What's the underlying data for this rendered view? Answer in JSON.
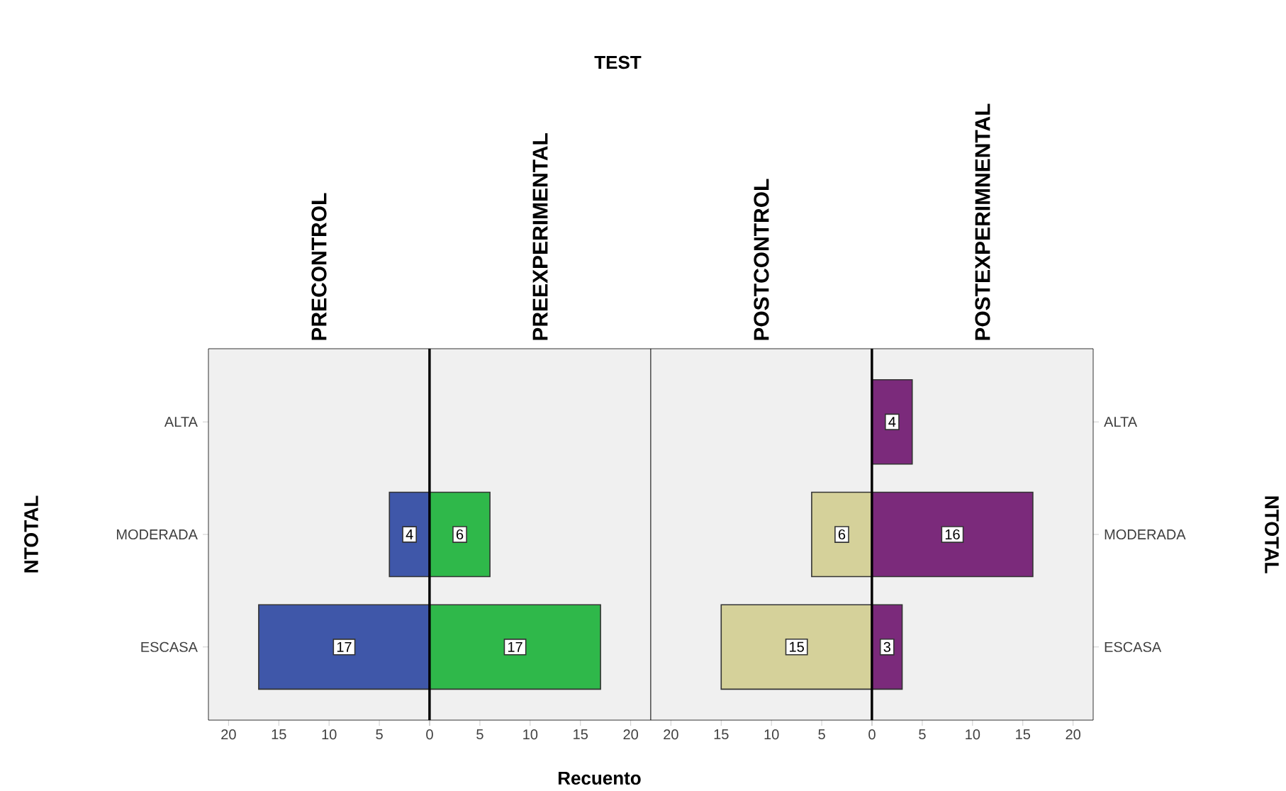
{
  "chart_data": [
    {
      "type": "bar",
      "orientation": "horizontal",
      "subtitle": "PRECONTROL",
      "ylabel": "NTOTAL",
      "categories": [
        "ALTA",
        "MODERADA",
        "ESCASA"
      ],
      "series": [
        {
          "color": "#3f57a9",
          "values": [
            null,
            4,
            17
          ]
        }
      ],
      "xlim": [
        22,
        0
      ],
      "xticks": [
        20,
        15,
        10,
        5,
        0
      ],
      "data_labels": true
    },
    {
      "type": "bar",
      "orientation": "horizontal",
      "title": "TEST",
      "subtitle": "PREEXPERIMENTAL",
      "xlabel": "Recuento",
      "categories": [
        null,
        null,
        null
      ],
      "tick_labels": "x",
      "series": [
        {
          "color": "#2fb84a",
          "values": [
            null,
            6,
            17
          ]
        }
      ],
      "xlim": [
        0,
        22
      ],
      "xticks": [
        {
          "value": 0,
          "label": null
        },
        5,
        10,
        15,
        20
      ],
      "data_labels": true
    },
    {
      "type": "bar",
      "orientation": "horizontal",
      "subtitle": "POSTCONTROL",
      "categories": [
        null,
        null,
        null
      ],
      "tick_labels": "x",
      "series": [
        {
          "color": "#d5d19a",
          "values": [
            null,
            6,
            15
          ]
        }
      ],
      "xlim": [
        22,
        0
      ],
      "xticks": [
        20,
        15,
        10,
        5,
        0
      ],
      "data_labels": true
    },
    {
      "type": "bar",
      "orientation": "horizontal",
      "subtitle": "POSTEXPERIMNENTAL",
      "y2label": "NTOTAL",
      "categories": [
        "ALTA",
        "MODERADA",
        "ESCASA"
      ],
      "series": [
        {
          "color": "#7b2a7b",
          "values": [
            4,
            16,
            3
          ]
        }
      ],
      "xlim": [
        0,
        22
      ],
      "xticks": [
        {
          "value": 0,
          "label": null
        },
        5,
        10,
        15,
        20
      ],
      "data_labels": true
    }
  ]
}
